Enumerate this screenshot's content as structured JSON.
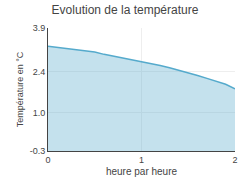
{
  "chart_data": {
    "type": "area",
    "title": "Evolution de la température",
    "xlabel": "heure par heure",
    "ylabel": "Température en °C",
    "x": [
      0,
      0.1,
      0.2,
      0.3,
      0.4,
      0.5,
      0.6,
      0.7,
      0.8,
      0.9,
      1.0,
      1.1,
      1.2,
      1.3,
      1.4,
      1.5,
      1.6,
      1.7,
      1.8,
      1.9,
      2.0
    ],
    "values": [
      3.28,
      3.24,
      3.2,
      3.16,
      3.12,
      3.08,
      3.0,
      2.94,
      2.88,
      2.82,
      2.76,
      2.7,
      2.62,
      2.54,
      2.46,
      2.38,
      2.28,
      2.18,
      2.08,
      1.98,
      1.82
    ],
    "color": "#55aacc",
    "xlim": [
      0,
      2
    ],
    "ylim": [
      -0.3,
      3.9
    ],
    "xticks": [
      0,
      1,
      2
    ],
    "yticks": [
      -0.3,
      {
        "value": 1.0,
        "label": "1.0"
      },
      2.4,
      3.9
    ],
    "grid": true
  }
}
